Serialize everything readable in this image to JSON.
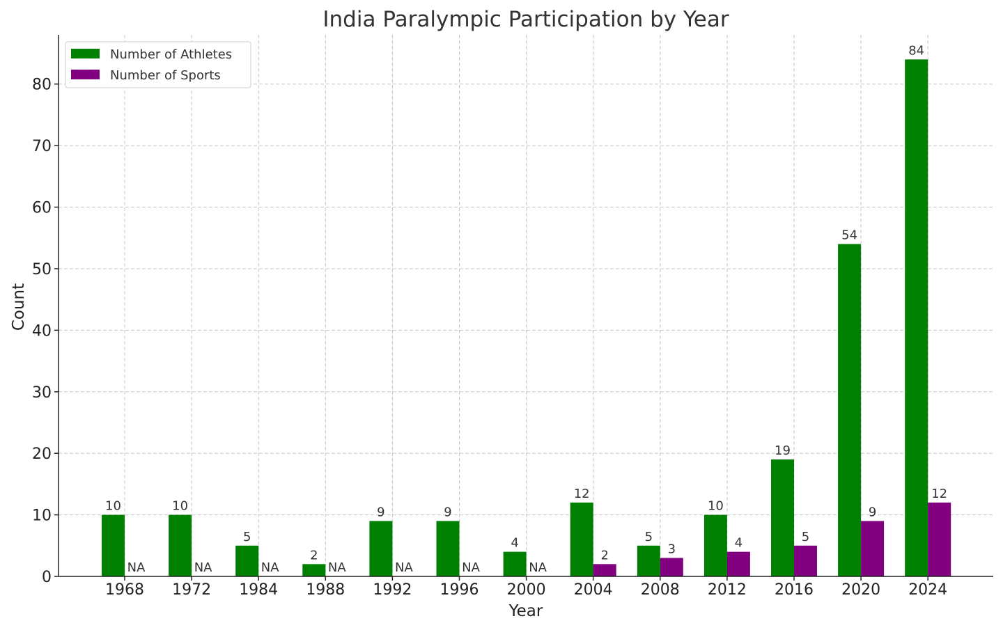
{
  "chart_data": {
    "type": "bar",
    "title": "India Paralympic Participation by Year",
    "xlabel": "Year",
    "ylabel": "Count",
    "categories": [
      "1968",
      "1972",
      "1984",
      "1988",
      "1992",
      "1996",
      "2000",
      "2004",
      "2008",
      "2012",
      "2016",
      "2020",
      "2024"
    ],
    "series": [
      {
        "name": "Number of Athletes",
        "color": "#008000",
        "values": [
          10,
          10,
          5,
          2,
          9,
          9,
          4,
          12,
          5,
          10,
          19,
          54,
          84
        ],
        "labels": [
          "10",
          "10",
          "5",
          "2",
          "9",
          "9",
          "4",
          "12",
          "5",
          "10",
          "19",
          "54",
          "84"
        ]
      },
      {
        "name": "Number of Sports",
        "color": "#800080",
        "values": [
          0,
          0,
          0,
          0,
          0,
          0,
          0,
          2,
          3,
          4,
          5,
          9,
          12
        ],
        "labels": [
          "NA",
          "NA",
          "NA",
          "NA",
          "NA",
          "NA",
          "NA",
          "2",
          "3",
          "4",
          "5",
          "9",
          "12"
        ]
      }
    ],
    "ylim": [
      0,
      88
    ],
    "yticks": [
      0,
      10,
      20,
      30,
      40,
      50,
      60,
      70,
      80
    ],
    "grid": true,
    "legend_position": "top-left"
  }
}
